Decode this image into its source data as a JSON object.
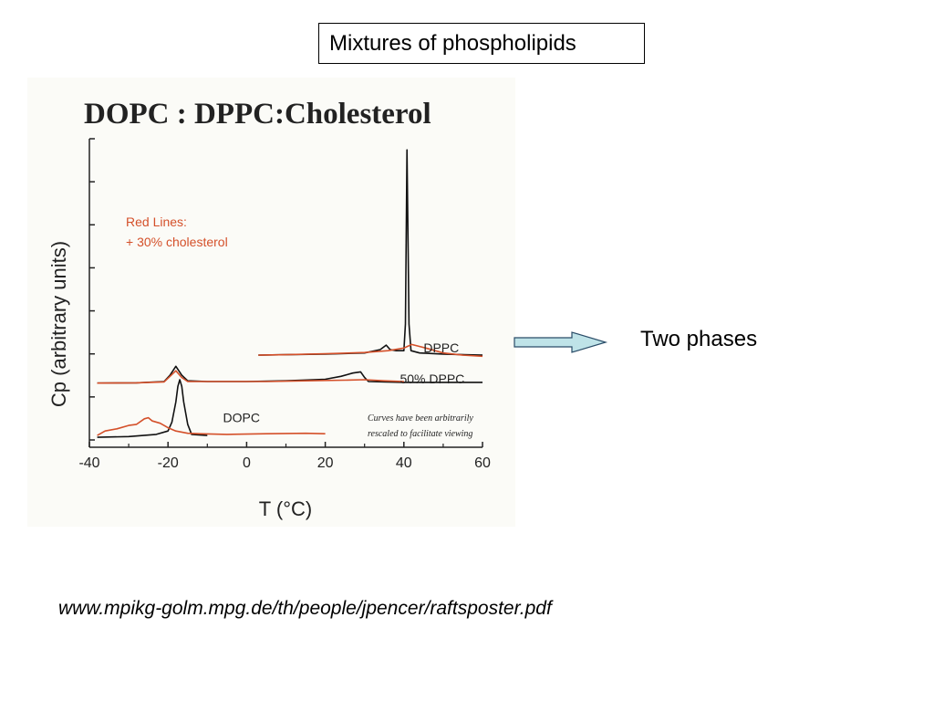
{
  "slide": {
    "title": "Mixtures of phospholipids",
    "annotation": "Two phases",
    "source": "www.mpikg-golm.mpg.de/th/people/jpencer/raftsposter.pdf"
  },
  "chart_data": {
    "type": "line",
    "title": "DOPC : DPPC:Cholesterol",
    "xlabel": "T (°C)",
    "ylabel": "Cp (arbitrary units)",
    "xlim": [
      -40,
      60
    ],
    "xticks": [
      -40,
      -20,
      0,
      20,
      40,
      60
    ],
    "legend_note": [
      "Red Lines:",
      "+ 30% cholesterol"
    ],
    "footnote": [
      "Curves have been arbitrarily",
      "rescaled to facilitate viewing"
    ],
    "colors": {
      "pure": "#111111",
      "cholesterol": "#d4502a"
    },
    "series": [
      {
        "name": "DPPC",
        "label": "DPPC",
        "color": "#111111",
        "x": [
          3,
          10,
          20,
          30,
          34,
          35.5,
          36.5,
          38,
          40,
          40.4,
          40.8,
          41.3,
          41.8,
          44,
          50,
          60
        ],
        "y": [
          0.38,
          0.382,
          0.385,
          0.39,
          0.405,
          0.425,
          0.405,
          0.4,
          0.4,
          0.52,
          1.3,
          0.52,
          0.4,
          0.39,
          0.385,
          0.38
        ]
      },
      {
        "name": "DPPC + 30% cholesterol",
        "color": "#d4502a",
        "x": [
          3,
          10,
          20,
          30,
          36,
          40,
          42,
          46,
          50,
          55,
          60
        ],
        "y": [
          0.38,
          0.382,
          0.386,
          0.392,
          0.4,
          0.412,
          0.428,
          0.41,
          0.39,
          0.38,
          0.375
        ]
      },
      {
        "name": "50% DPPC",
        "label": "50% DPPC",
        "color": "#111111",
        "x": [
          -38,
          -28,
          -21,
          -19.5,
          -18,
          -16.5,
          -15,
          -10,
          0,
          10,
          20,
          24,
          27,
          29,
          30,
          31,
          40,
          50,
          60
        ],
        "y": [
          0.255,
          0.256,
          0.262,
          0.29,
          0.33,
          0.29,
          0.265,
          0.262,
          0.262,
          0.265,
          0.272,
          0.285,
          0.3,
          0.305,
          0.28,
          0.262,
          0.258,
          0.258,
          0.258
        ]
      },
      {
        "name": "50% DPPC + 30% cholesterol",
        "color": "#d4502a",
        "x": [
          -38,
          -28,
          -21,
          -19.5,
          -18,
          -16.5,
          -15,
          -5,
          5,
          15,
          25,
          30,
          35,
          40
        ],
        "y": [
          0.255,
          0.256,
          0.26,
          0.285,
          0.31,
          0.28,
          0.262,
          0.262,
          0.262,
          0.265,
          0.268,
          0.27,
          0.265,
          0.262
        ]
      },
      {
        "name": "DOPC",
        "label": "DOPC",
        "color": "#111111",
        "x": [
          -38,
          -30,
          -23,
          -20,
          -19,
          -18,
          -17.5,
          -17,
          -16.5,
          -16,
          -15,
          -14,
          -10
        ],
        "y": [
          0.012,
          0.015,
          0.025,
          0.04,
          0.08,
          0.17,
          0.24,
          0.27,
          0.24,
          0.17,
          0.07,
          0.025,
          0.02
        ]
      },
      {
        "name": "DOPC + 30% cholesterol",
        "color": "#d4502a",
        "x": [
          -38,
          -36,
          -33,
          -30,
          -28,
          -26,
          -25,
          -24,
          -22,
          -20,
          -18,
          -15,
          -12,
          -5,
          5,
          15,
          20
        ],
        "y": [
          0.02,
          0.04,
          0.05,
          0.065,
          0.07,
          0.095,
          0.1,
          0.085,
          0.075,
          0.055,
          0.04,
          0.03,
          0.028,
          0.025,
          0.028,
          0.03,
          0.028
        ]
      }
    ]
  }
}
